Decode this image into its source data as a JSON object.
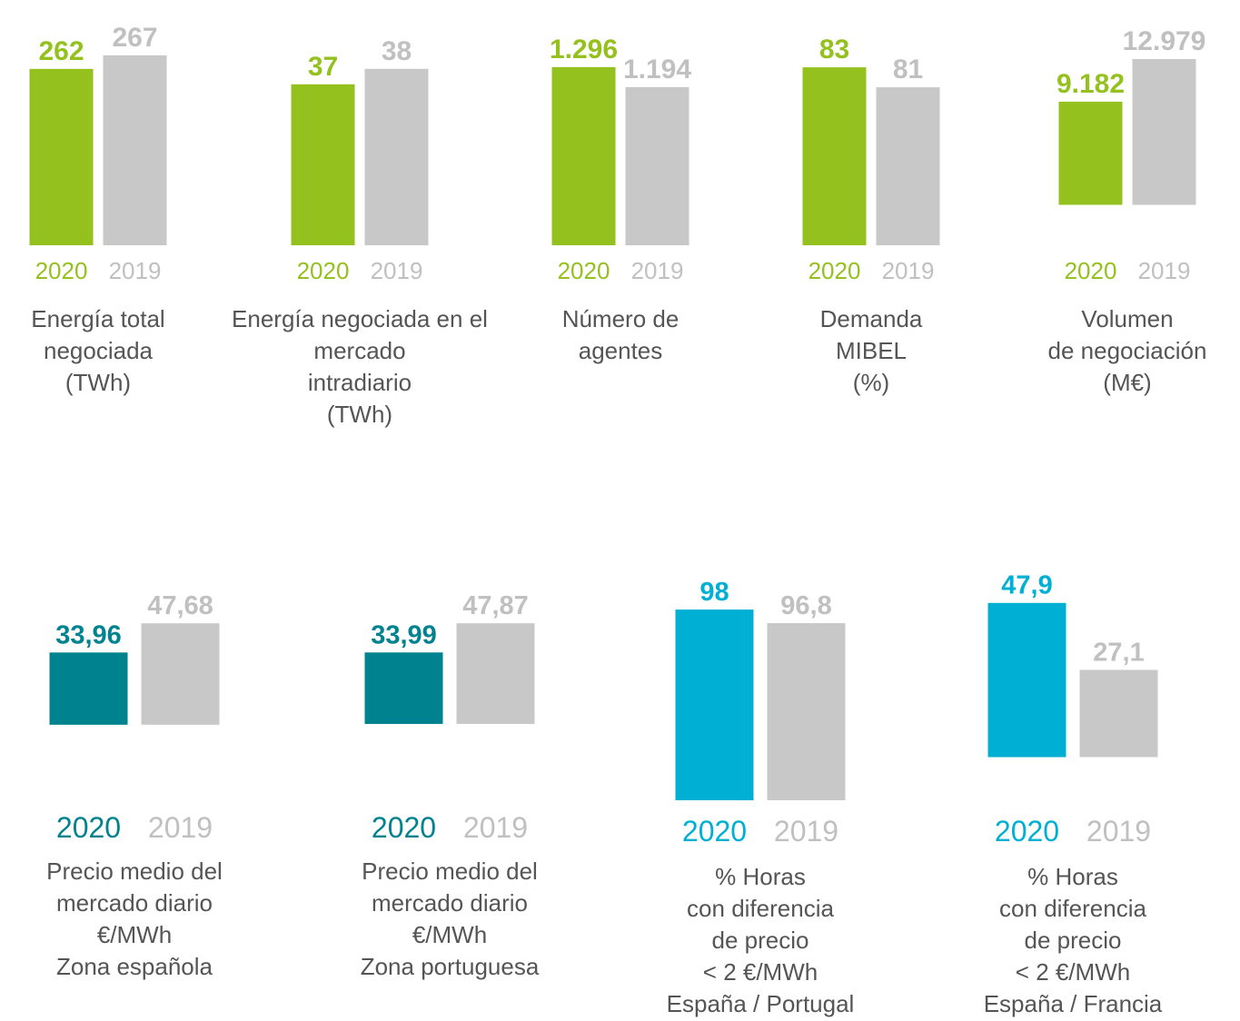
{
  "chart_data": [
    {
      "type": "bar",
      "categories": [
        "2020",
        "2019"
      ],
      "values": [
        262,
        267
      ],
      "value_labels": [
        "262",
        "267"
      ],
      "colors": [
        "#95c11f",
        "#c8c8c8"
      ],
      "ylim": [
        197,
        274
      ],
      "title": [
        "Energía total",
        "negociada",
        "(TWh)"
      ]
    },
    {
      "type": "bar",
      "categories": [
        "2020",
        "2019"
      ],
      "values": [
        37,
        38
      ],
      "value_labels": [
        "37",
        "38"
      ],
      "colors": [
        "#95c11f",
        "#c8c8c8"
      ],
      "ylim": [
        26.6,
        40.1
      ],
      "title": [
        "Energía negociada en el",
        "mercado",
        "intradiario",
        "(TWh)"
      ]
    },
    {
      "type": "bar",
      "categories": [
        "2020",
        "2019"
      ],
      "values": [
        1296,
        1194
      ],
      "value_labels": [
        "1.296",
        "1.194"
      ],
      "colors": [
        "#95c11f",
        "#c8c8c8"
      ],
      "ylim": [
        387,
        1453
      ],
      "title": [
        "Número de",
        "agentes"
      ]
    },
    {
      "type": "bar",
      "categories": [
        "2020",
        "2019"
      ],
      "values": [
        83,
        81
      ],
      "value_labels": [
        "83",
        "81"
      ],
      "colors": [
        "#95c11f",
        "#c8c8c8"
      ],
      "ylim": [
        65.2,
        86.1
      ],
      "title": [
        "Demanda",
        "MIBEL",
        "(%)"
      ]
    },
    {
      "type": "bar",
      "categories": [
        "2020",
        "2019"
      ],
      "values": [
        9182,
        12979
      ],
      "value_labels": [
        "9.182",
        "12.979"
      ],
      "colors": [
        "#95c11f",
        "#c8c8c8"
      ],
      "ylim": [
        -3600,
        15000
      ],
      "title": [
        "Volumen",
        "de negociación",
        "(M€)"
      ]
    },
    {
      "type": "bar",
      "categories": [
        "2020",
        "2019"
      ],
      "values": [
        33.96,
        47.68
      ],
      "value_labels": [
        "33,96",
        "47,68"
      ],
      "colors": [
        "#00838f",
        "#c8c8c8"
      ],
      "ylim": [
        -35.5,
        67.4
      ],
      "title": [
        "Precio medio del",
        "mercado diario",
        "€/MWh",
        "Zona española"
      ]
    },
    {
      "type": "bar",
      "categories": [
        "2020",
        "2019"
      ],
      "values": [
        33.99,
        47.87
      ],
      "value_labels": [
        "33,99",
        "47,87"
      ],
      "colors": [
        "#00838f",
        "#c8c8c8"
      ],
      "ylim": [
        -36.3,
        67.8
      ],
      "title": [
        "Precio medio del",
        "mercado diario",
        "€/MWh",
        "Zona portuguesa"
      ]
    },
    {
      "type": "bar",
      "categories": [
        "2020",
        "2019"
      ],
      "values": [
        98,
        96.8
      ],
      "value_labels": [
        "98",
        "96,8"
      ],
      "colors": [
        "#00b0d4",
        "#c8c8c8"
      ],
      "ylim": [
        81.1,
        100.5
      ],
      "title": [
        "% Horas",
        "con diferencia",
        "de precio",
        "< 2 €/MWh",
        "España / Portugal"
      ]
    },
    {
      "type": "bar",
      "categories": [
        "2020",
        "2019"
      ],
      "values": [
        47.9,
        27.1
      ],
      "value_labels": [
        "47,9",
        "27,1"
      ],
      "colors": [
        "#00b0d4",
        "#c8c8c8"
      ],
      "ylim": [
        -13.4,
        54.6
      ],
      "title": [
        "% Horas",
        "con diferencia",
        "de precio",
        "< 2 €/MWh",
        "España / Francia"
      ]
    }
  ]
}
